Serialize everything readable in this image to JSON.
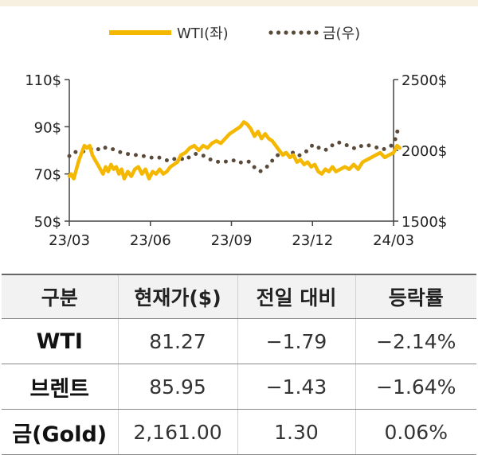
{
  "chart_data": {
    "type": "line",
    "x_ticks": [
      "23/03",
      "23/06",
      "23/09",
      "23/12",
      "24/03"
    ],
    "y_left": {
      "ticks": [
        "110$",
        "90$",
        "70$",
        "50$"
      ],
      "values": [
        110,
        90,
        70,
        50
      ],
      "range": [
        50,
        110
      ]
    },
    "y_right": {
      "ticks": [
        "2500$",
        "2000$",
        "1500$"
      ],
      "values": [
        2500,
        2000,
        1500
      ],
      "range": [
        1500,
        2500
      ]
    },
    "legend_position": "top-center",
    "series": [
      {
        "name": "WTI(좌)",
        "axis": "left",
        "color": "#f5b800",
        "style": "solid",
        "x": [
          "2023-03-01",
          "2023-03-03",
          "2023-03-06",
          "2023-03-09",
          "2023-03-12",
          "2023-03-15",
          "2023-03-18",
          "2023-03-21",
          "2023-03-24",
          "2023-03-27",
          "2023-03-30",
          "2023-04-02",
          "2023-04-05",
          "2023-04-08",
          "2023-04-11",
          "2023-04-14",
          "2023-04-17",
          "2023-04-20",
          "2023-04-23",
          "2023-04-26",
          "2023-04-29",
          "2023-05-02",
          "2023-05-06",
          "2023-05-10",
          "2023-05-14",
          "2023-05-18",
          "2023-05-22",
          "2023-05-26",
          "2023-05-30",
          "2023-06-03",
          "2023-06-07",
          "2023-06-11",
          "2023-06-15",
          "2023-06-19",
          "2023-06-23",
          "2023-06-27",
          "2023-07-01",
          "2023-07-05",
          "2023-07-10",
          "2023-07-15",
          "2023-07-20",
          "2023-07-25",
          "2023-07-30",
          "2023-08-04",
          "2023-08-09",
          "2023-08-14",
          "2023-08-19",
          "2023-08-24",
          "2023-08-29",
          "2023-09-02",
          "2023-09-06",
          "2023-09-10",
          "2023-09-14",
          "2023-09-18",
          "2023-09-22",
          "2023-09-26",
          "2023-09-30",
          "2023-10-04",
          "2023-10-08",
          "2023-10-12",
          "2023-10-16",
          "2023-10-20",
          "2023-10-24",
          "2023-10-28",
          "2023-11-01",
          "2023-11-05",
          "2023-11-09",
          "2023-11-13",
          "2023-11-17",
          "2023-11-21",
          "2023-11-25",
          "2023-11-29",
          "2023-12-03",
          "2023-12-07",
          "2023-12-11",
          "2023-12-15",
          "2023-12-19",
          "2023-12-23",
          "2023-12-27",
          "2024-01-01",
          "2024-01-06",
          "2024-01-11",
          "2024-01-16",
          "2024-01-21",
          "2024-01-26",
          "2024-01-31",
          "2024-02-05",
          "2024-02-10",
          "2024-02-15",
          "2024-02-20",
          "2024-02-25",
          "2024-03-01",
          "2024-03-05",
          "2024-03-08"
        ],
        "values": [
          69,
          70,
          68,
          72,
          76,
          79,
          82,
          81,
          82,
          78,
          76,
          74,
          72,
          70,
          73,
          71,
          74,
          72,
          73,
          70,
          72,
          68,
          71,
          69,
          72,
          73,
          70,
          72,
          68,
          71,
          70,
          72,
          70,
          71,
          73,
          74,
          75,
          78,
          79,
          81,
          82,
          80,
          82,
          81,
          83,
          84,
          83,
          85,
          87,
          88,
          89,
          90,
          92,
          91,
          89,
          86,
          88,
          85,
          87,
          85,
          84,
          82,
          80,
          78,
          79,
          77,
          78,
          75,
          76,
          74,
          75,
          73,
          74,
          71,
          70,
          72,
          71,
          73,
          71,
          72,
          73,
          72,
          74,
          72,
          75,
          76,
          77,
          78,
          79,
          77,
          78,
          79,
          82,
          81
        ]
      },
      {
        "name": "금(우)",
        "axis": "right",
        "color": "#5a4a3a",
        "style": "dotted",
        "x": [
          "2023-03-01",
          "2023-03-06",
          "2023-03-12",
          "2023-03-18",
          "2023-03-24",
          "2023-03-30",
          "2023-04-05",
          "2023-04-11",
          "2023-04-17",
          "2023-04-23",
          "2023-04-29",
          "2023-05-05",
          "2023-05-11",
          "2023-05-17",
          "2023-05-23",
          "2023-05-29",
          "2023-06-04",
          "2023-06-10",
          "2023-06-16",
          "2023-06-22",
          "2023-06-28",
          "2023-07-04",
          "2023-07-10",
          "2023-07-16",
          "2023-07-22",
          "2023-07-28",
          "2023-08-03",
          "2023-08-09",
          "2023-08-15",
          "2023-08-21",
          "2023-08-27",
          "2023-09-02",
          "2023-09-08",
          "2023-09-14",
          "2023-09-20",
          "2023-09-26",
          "2023-10-02",
          "2023-10-08",
          "2023-10-14",
          "2023-10-20",
          "2023-10-26",
          "2023-11-01",
          "2023-11-07",
          "2023-11-13",
          "2023-11-19",
          "2023-11-25",
          "2023-12-01",
          "2023-12-07",
          "2023-12-13",
          "2023-12-19",
          "2023-12-25",
          "2023-12-31",
          "2024-01-06",
          "2024-01-12",
          "2024-01-18",
          "2024-01-24",
          "2024-01-30",
          "2024-02-05",
          "2024-02-11",
          "2024-02-17",
          "2024-02-23",
          "2024-02-29",
          "2024-03-03",
          "2024-03-06",
          "2024-03-08"
        ],
        "values": [
          1960,
          1990,
          1985,
          1995,
          2005,
          2020,
          2000,
          2020,
          2015,
          1995,
          1985,
          1975,
          1970,
          1965,
          1960,
          1955,
          1945,
          1950,
          1935,
          1925,
          1940,
          1945,
          1930,
          1960,
          1975,
          1970,
          1950,
          1930,
          1920,
          1915,
          1925,
          1930,
          1910,
          1920,
          1920,
          1880,
          1850,
          1870,
          1910,
          1960,
          1975,
          1980,
          1990,
          1960,
          1970,
          2000,
          2040,
          2020,
          2000,
          2010,
          2050,
          2055,
          2040,
          2030,
          2010,
          2030,
          2040,
          2030,
          2020,
          2005,
          2015,
          2040,
          2080,
          2150,
          2140
        ]
      }
    ]
  },
  "table": {
    "headers": [
      "구분",
      "현재가($)",
      "전일 대비",
      "등락률"
    ],
    "rows": [
      [
        "WTI",
        "81.27",
        "−1.79",
        "−2.14%"
      ],
      [
        "브렌트",
        "85.95",
        "−1.43",
        "−1.64%"
      ],
      [
        "금(Gold)",
        "2,161.00",
        "1.30",
        "0.06%"
      ]
    ]
  }
}
